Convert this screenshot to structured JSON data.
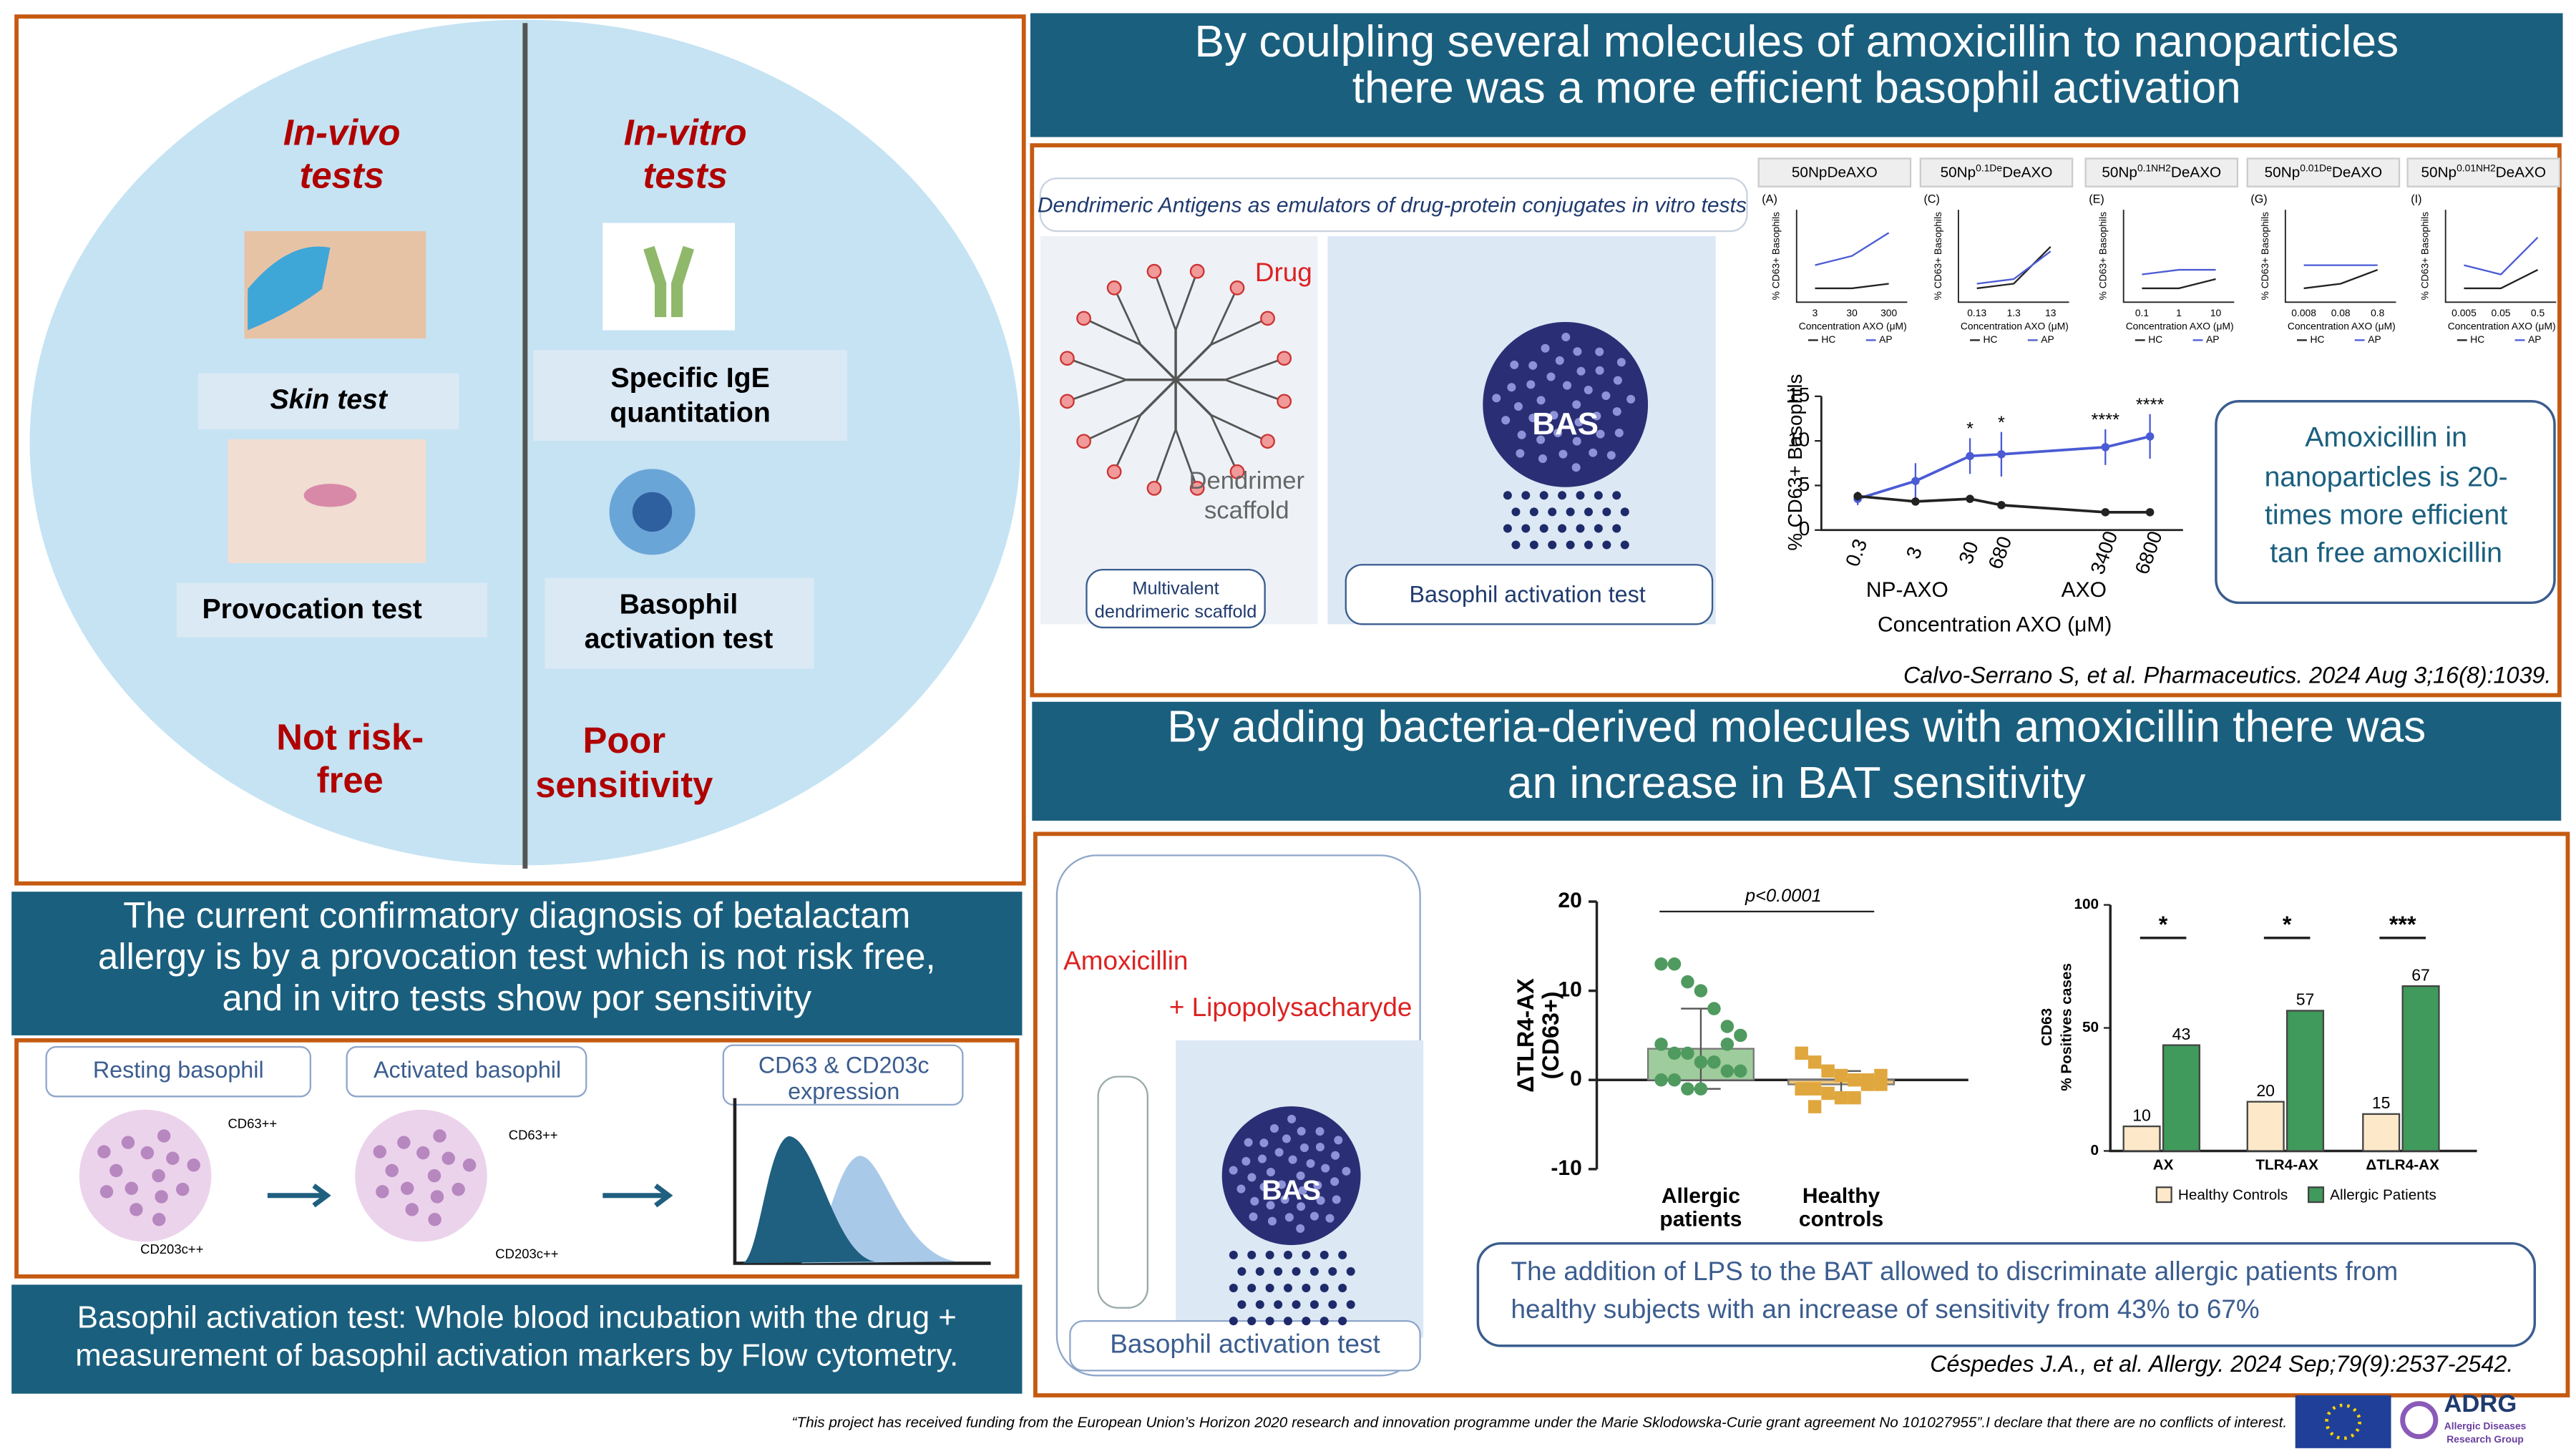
{
  "left_panel": {
    "in_vivo": {
      "title": [
        "In-vivo",
        "tests"
      ],
      "skin_test": "Skin test",
      "provocation_test": "Provocation test",
      "limitation": [
        "Not risk-",
        "free"
      ]
    },
    "in_vitro": {
      "title": [
        "In-vitro",
        "tests"
      ],
      "ige": [
        "Specific IgE",
        "quantitation"
      ],
      "bat": [
        "Basophil",
        "activation test"
      ],
      "limitation": [
        "Poor",
        "sensitivity"
      ]
    },
    "summary": [
      "The current confirmatory diagnosis of betalactam",
      "allergy  is by  a provocation test which is not risk free,",
      "and in vitro tests show por sensitivity"
    ],
    "diagram": {
      "resting": "Resting basophil",
      "activated": "Activated basophil",
      "expression": [
        "CD63 & CD203c",
        "expression"
      ],
      "cd63": "CD63++",
      "cd203c": "CD203c++"
    },
    "bat_definition": [
      "Basophil activation test: Whole blood incubation with the drug +",
      "measurement of basophil activation markers by Flow cytometry."
    ]
  },
  "nanoparticles": {
    "banner": [
      "By coulpling several molecules of amoxicillin to nanoparticles",
      "there was a more efficient basophil activation"
    ],
    "figure_title": "Dendrimeric Antigens as emulators of drug-protein conjugates in vitro tests",
    "drug": "Drug",
    "scaffold": [
      "Dendrimer",
      "scaffold"
    ],
    "multivalent": [
      "Multivalent",
      "dendrimeric scaffold"
    ],
    "bas": "BAS",
    "bat": "Basophil activation test",
    "panel_axes": {
      "y_label": "% CD63+ Basophils",
      "x_label": "Concentration AXO (μM)"
    },
    "panels": [
      {
        "type": "line",
        "letter": "(A)",
        "title": [
          "50NpDeAXO"
        ],
        "categories": [
          "3",
          "30",
          "300"
        ],
        "ylim": [
          0,
          20
        ],
        "series": [
          {
            "name": "HC",
            "color": "#222222",
            "values": [
              3,
              3,
              4
            ]
          },
          {
            "name": "AP",
            "color": "#4a5bd4",
            "values": [
              8,
              10,
              15
            ]
          }
        ]
      },
      {
        "type": "line",
        "letter": "(C)",
        "title": [
          "50Np",
          "0.1De",
          "DeAXO"
        ],
        "categories": [
          "0.13",
          "1.3",
          "13"
        ],
        "ylim": [
          0,
          20
        ],
        "series": [
          {
            "name": "HC",
            "color": "#222222",
            "values": [
              3,
              4,
              12
            ]
          },
          {
            "name": "AP",
            "color": "#4a5bd4",
            "values": [
              4,
              5,
              11
            ]
          }
        ]
      },
      {
        "type": "line",
        "letter": "(E)",
        "title": [
          "50Np",
          "0.1NH2",
          "DeAXO"
        ],
        "categories": [
          "0.1",
          "1",
          "10"
        ],
        "ylim": [
          0,
          20
        ],
        "series": [
          {
            "name": "HC",
            "color": "#222222",
            "values": [
              3,
              3,
              5
            ]
          },
          {
            "name": "AP",
            "color": "#4a5bd4",
            "values": [
              6,
              7,
              7
            ]
          }
        ]
      },
      {
        "type": "line",
        "letter": "(G)",
        "title": [
          "50Np",
          "0.01De",
          "DeAXO"
        ],
        "categories": [
          "0.008",
          "0.08",
          "0.8"
        ],
        "ylim": [
          0,
          20
        ],
        "series": [
          {
            "name": "HC",
            "color": "#222222",
            "values": [
              3,
              4,
              7
            ]
          },
          {
            "name": "AP",
            "color": "#4a5bd4",
            "values": [
              8,
              8,
              8
            ]
          }
        ]
      },
      {
        "type": "line",
        "letter": "(I)",
        "title": [
          "50Np",
          "0.01NH2",
          "DeAXO"
        ],
        "categories": [
          "0.005",
          "0.05",
          "0.5"
        ],
        "ylim": [
          0,
          20
        ],
        "series": [
          {
            "name": "HC",
            "color": "#222222",
            "values": [
              3,
              3,
              7
            ]
          },
          {
            "name": "AP",
            "color": "#4a5bd4",
            "values": [
              8,
              6,
              14
            ]
          }
        ]
      }
    ],
    "main_chart": {
      "type": "line",
      "y_label": "% CD63+ Basophils",
      "x_label": "Concentration AXO (μM)",
      "categories": [
        "0.3",
        "3",
        "30",
        "680",
        "3400",
        "6800"
      ],
      "group_labels": [
        "NP-AXO",
        "AXO"
      ],
      "ylim": [
        0,
        15
      ],
      "yticks": [
        0,
        5,
        10,
        15
      ],
      "series": [
        {
          "color": "#4a5bd4",
          "values": [
            3.5,
            5.5,
            8.3,
            8.5,
            9.3,
            10.5
          ],
          "errors": [
            0.7,
            2,
            2,
            2.5,
            2,
            2.5
          ]
        },
        {
          "color": "#222222",
          "values": [
            3.8,
            3.2,
            3.5,
            2.8,
            2,
            2
          ],
          "errors": [
            0.5,
            0.3,
            0.3,
            0.3,
            0.2,
            0.2
          ]
        }
      ],
      "significance": [
        null,
        null,
        "*",
        "*",
        "****",
        "****"
      ]
    },
    "callout": [
      "Amoxicillin in",
      "nanoparticles is 20-",
      "times more efficient",
      "tan free amoxicillin"
    ],
    "citation": "Calvo-Serrano S, et al. Pharmaceutics. 2024 Aug 3;16(8):1039."
  },
  "bacteria": {
    "banner": [
      "By adding bacteria-derived molecules with amoxicillin there was",
      "an increase in BAT sensitivity"
    ],
    "amoxicillin": "Amoxicillin",
    "lps": "+ Lipopolysacharyde",
    "bas": "BAS",
    "bat": "Basophil activation test",
    "tlr_chart": {
      "type": "bar",
      "y_label": [
        "ΔTLR4-AX",
        "(CD63+)"
      ],
      "categories": [
        [
          "Allergic",
          "patients"
        ],
        [
          "Healthy",
          "controls"
        ]
      ],
      "values": [
        3.5,
        -0.5
      ],
      "errors": [
        4.5,
        1.5
      ],
      "colors": [
        "#9fcc9c",
        "#f3c77c"
      ],
      "point_colors": [
        "#4f9a5f",
        "#e0a73e"
      ],
      "points": [
        [
          13,
          13,
          11,
          10,
          8,
          6,
          5,
          4,
          3,
          3,
          2,
          2,
          1,
          1,
          0,
          0,
          -1,
          -1,
          2,
          4
        ],
        [
          3,
          2,
          1,
          0.5,
          0,
          0,
          -0.5,
          -1,
          -1,
          -1.5,
          -2,
          -2,
          -0.5,
          0.5,
          -1,
          -3
        ]
      ],
      "annotation": "p<0.0001",
      "ylim": [
        -10,
        20
      ],
      "yticks": [
        -10,
        0,
        10,
        20
      ]
    },
    "bar_chart": {
      "type": "bar",
      "y_label": [
        "CD63",
        "% Positives cases"
      ],
      "categories": [
        "AX",
        "TLR4-AX",
        "ΔTLR4-AX"
      ],
      "series": [
        {
          "name": "Healthy Controls",
          "color": "#fde9c9",
          "values": [
            10,
            20,
            15
          ]
        },
        {
          "name": "Allergic Patients",
          "color": "#3f9a5b",
          "values": [
            43,
            57,
            67
          ]
        }
      ],
      "significance": [
        "*",
        "*",
        "***"
      ],
      "ylim": [
        0,
        100
      ],
      "yticks": [
        0,
        50,
        100
      ]
    },
    "callout": [
      "The addition of LPS to the BAT allowed to discriminate allergic patients from",
      "healthy subjects with an increase of sensitivity from 43% to 67%"
    ],
    "citation": "Céspedes J.A., et al. Allergy. 2024 Sep;79(9):2537-2542."
  },
  "footer": {
    "funding": "“This project has received funding from the European Union’s Horizon 2020 research and innovation programme under the Marie Sklodowska-Curie grant agreement No 101027955”.I declare that there are no conflicts of interest.",
    "logo": "ADRG",
    "logo_subtitle": [
      "Allergic Diseases",
      "Research Group"
    ]
  }
}
